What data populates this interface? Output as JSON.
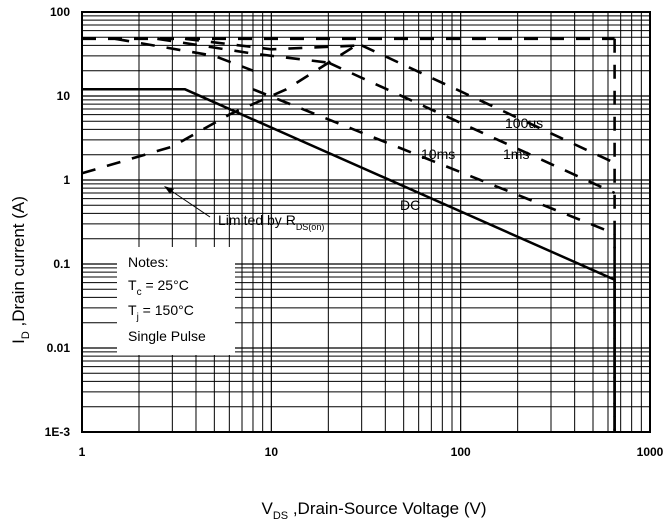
{
  "chart_data": {
    "type": "line",
    "xscale": "log",
    "yscale": "log",
    "xlim": [
      1,
      1000
    ],
    "ylim": [
      0.001,
      100
    ],
    "grid": true,
    "x_tick_labels": [
      "1",
      "10",
      "100",
      "1000"
    ],
    "y_tick_labels": [
      "100",
      "10",
      "1",
      "0.1",
      "0.01",
      "1E-3"
    ],
    "xlabel": {
      "main": "V",
      "sub": "DS",
      "rest": " ,Drain-Source Voltage (V)"
    },
    "ylabel": {
      "main": "I",
      "sub": "D",
      "rest": " ,Drain current (A)"
    },
    "series": [
      {
        "name": "DC",
        "style": "solid",
        "points": [
          [
            1,
            12
          ],
          [
            3.5,
            12
          ],
          [
            650,
            0.065
          ],
          [
            650,
            0.001
          ]
        ]
      },
      {
        "name": "10ms",
        "style": "dashed",
        "points": [
          [
            8,
            12
          ],
          [
            650,
            0.23
          ],
          [
            650,
            0.001
          ]
        ]
      },
      {
        "name": "1ms",
        "style": "dashed",
        "points": [
          [
            20,
            25
          ],
          [
            650,
            0.7
          ]
        ]
      },
      {
        "name": "100us",
        "style": "dashed",
        "points": [
          [
            30,
            40
          ],
          [
            650,
            1.6
          ]
        ]
      },
      {
        "name": "",
        "style": "dashed",
        "points": [
          [
            1.5,
            48
          ],
          [
            5,
            30
          ],
          [
            8,
            20
          ]
        ]
      },
      {
        "name": "",
        "style": "dashed",
        "points": [
          [
            2.5,
            48
          ],
          [
            8,
            32
          ],
          [
            20,
            25
          ]
        ]
      },
      {
        "name": "",
        "style": "dashed",
        "points": [
          [
            3.5,
            48
          ],
          [
            10,
            36
          ],
          [
            30,
            40
          ]
        ]
      },
      {
        "name": "",
        "style": "dashed",
        "points": [
          [
            1,
            48
          ],
          [
            650,
            48
          ]
        ]
      },
      {
        "name": "",
        "style": "dashed",
        "points": [
          [
            650,
            48
          ],
          [
            650,
            0.001
          ]
        ]
      },
      {
        "name": "Limited by RDS(on)",
        "style": "dashed",
        "points": [
          [
            1,
            1.2
          ],
          [
            3,
            2.5
          ],
          [
            6,
            6
          ],
          [
            12,
            12
          ],
          [
            28,
            40
          ]
        ]
      }
    ],
    "annotations": [
      {
        "text": "100us",
        "x": 120,
        "y": 11.5
      },
      {
        "text": "1ms",
        "x": 110,
        "y": 2.2
      },
      {
        "text": "10ms",
        "x": 45,
        "y": 2.2
      },
      {
        "text": "DC",
        "x": 52,
        "y": 0.55
      },
      {
        "main": "Limited by R",
        "sub": "DS(on)",
        "x": 4.3,
        "y": 0.31
      }
    ],
    "notes": {
      "title": "Notes:",
      "tc": {
        "main": "T",
        "sub": "c",
        "rest": " = 25°C"
      },
      "tj": {
        "main": "T",
        "sub": "j",
        "rest": " = 150°C"
      },
      "pulse": "Single Pulse"
    }
  }
}
